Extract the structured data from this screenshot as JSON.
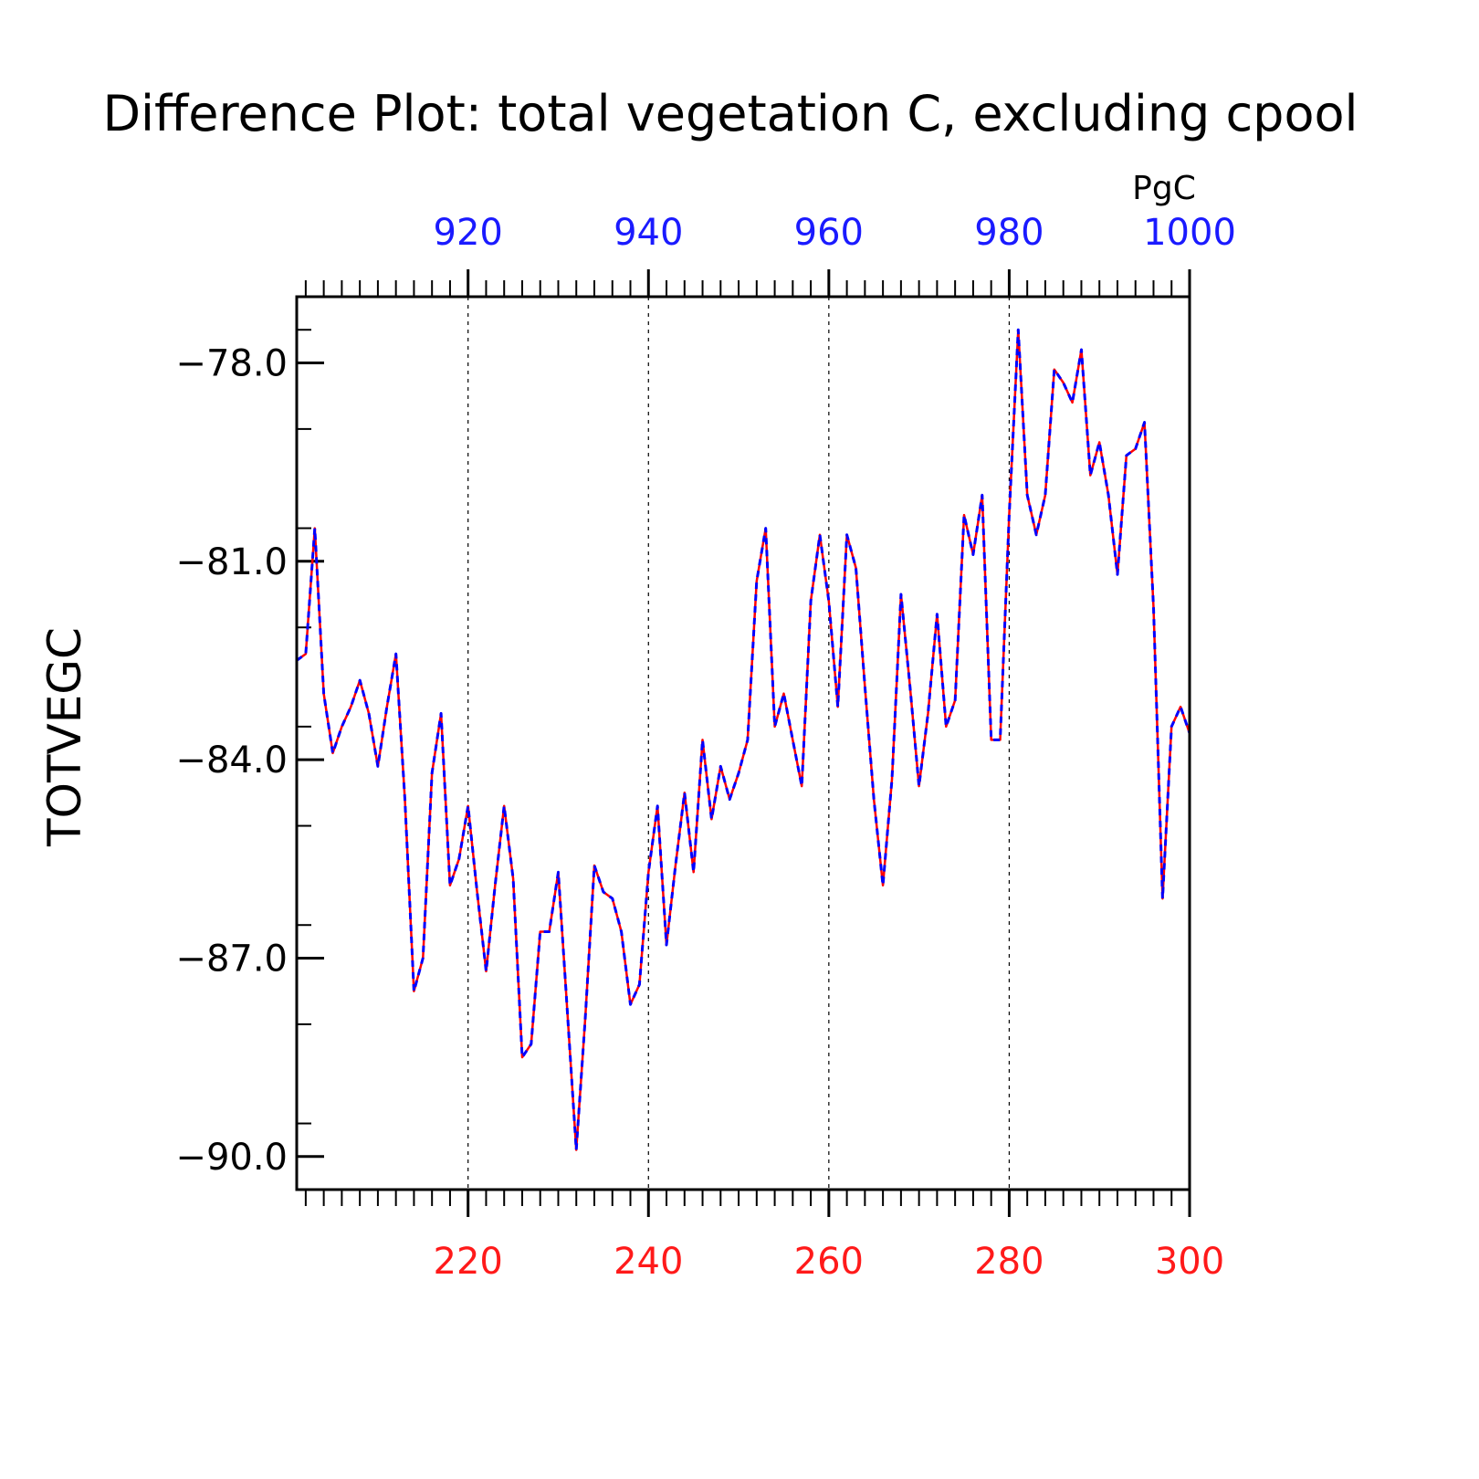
{
  "chart_data": {
    "type": "line",
    "title": "Difference Plot: total vegetation C, excluding cpool",
    "ylabel": "TOTVEGC",
    "unit_label": "PgC",
    "ylim": [
      -90.5,
      -77.0
    ],
    "yticks": [
      "−78.0",
      "−81.0",
      "−84.0",
      "−87.0",
      "−90.0"
    ],
    "ytick_values": [
      -78,
      -81,
      -84,
      -87,
      -90
    ],
    "x_bottom": {
      "range": [
        201,
        300
      ],
      "tick_values": [
        220,
        240,
        260,
        280,
        300
      ],
      "tick_labels": [
        "220",
        "240",
        "260",
        "280",
        "300"
      ],
      "color": "#ff0000"
    },
    "x_top": {
      "range": [
        901,
        1000
      ],
      "tick_values": [
        920,
        940,
        960,
        980,
        1000
      ],
      "tick_labels": [
        "920",
        "940",
        "960",
        "980",
        "1000"
      ],
      "color": "#0000ff"
    },
    "grid": "dotted vertical lines at major x ticks",
    "series": [
      {
        "color": "#ff0000",
        "style": "solid",
        "x": [
          201,
          202,
          203,
          204,
          205,
          206,
          207,
          208,
          209,
          210,
          211,
          212,
          213,
          214,
          215,
          216,
          217,
          218,
          219,
          220,
          221,
          222,
          223,
          224,
          225,
          226,
          227,
          228,
          229,
          230,
          231,
          232,
          233,
          234,
          235,
          236,
          237,
          238,
          239,
          240,
          241,
          242,
          243,
          244,
          245,
          246,
          247,
          248,
          249,
          250,
          251,
          252,
          253,
          254,
          255,
          256,
          257,
          258,
          259,
          260,
          261,
          262,
          263,
          264,
          265,
          266,
          267,
          268,
          269,
          270,
          271,
          272,
          273,
          274,
          275,
          276,
          277,
          278,
          279,
          280,
          281,
          282,
          283,
          284,
          285,
          286,
          287,
          288,
          289,
          290,
          291,
          292,
          293,
          294,
          295,
          296,
          297,
          298,
          299,
          300
        ],
        "values": [
          -82.5,
          -82.4,
          -80.5,
          -83.0,
          -83.9,
          -83.5,
          -83.2,
          -82.8,
          -83.3,
          -84.1,
          -83.2,
          -82.4,
          -84.6,
          -87.5,
          -87.0,
          -84.2,
          -83.3,
          -85.9,
          -85.5,
          -84.7,
          -86.0,
          -87.2,
          -85.9,
          -84.7,
          -85.8,
          -88.5,
          -88.3,
          -86.6,
          -86.6,
          -85.7,
          -87.8,
          -89.9,
          -87.9,
          -85.6,
          -86.0,
          -86.1,
          -86.6,
          -87.7,
          -87.4,
          -85.7,
          -84.7,
          -86.8,
          -85.6,
          -84.5,
          -85.7,
          -83.7,
          -84.9,
          -84.1,
          -84.6,
          -84.2,
          -83.7,
          -81.3,
          -80.5,
          -83.5,
          -83.0,
          -83.7,
          -84.4,
          -81.6,
          -80.6,
          -81.6,
          -83.2,
          -80.6,
          -81.1,
          -82.9,
          -84.6,
          -85.9,
          -84.3,
          -81.5,
          -82.9,
          -84.4,
          -83.3,
          -81.8,
          -83.5,
          -83.1,
          -80.3,
          -80.9,
          -80.0,
          -83.7,
          -83.7,
          -80.3,
          -77.5,
          -80.0,
          -80.6,
          -80.0,
          -78.1,
          -78.3,
          -78.6,
          -77.8,
          -79.7,
          -79.2,
          -80.0,
          -81.2,
          -79.4,
          -79.3,
          -78.9,
          -81.7,
          -86.1,
          -83.5,
          -83.2,
          -83.6
        ]
      },
      {
        "color": "#0000ff",
        "style": "dashed",
        "x": [
          201,
          202,
          203,
          204,
          205,
          206,
          207,
          208,
          209,
          210,
          211,
          212,
          213,
          214,
          215,
          216,
          217,
          218,
          219,
          220,
          221,
          222,
          223,
          224,
          225,
          226,
          227,
          228,
          229,
          230,
          231,
          232,
          233,
          234,
          235,
          236,
          237,
          238,
          239,
          240,
          241,
          242,
          243,
          244,
          245,
          246,
          247,
          248,
          249,
          250,
          251,
          252,
          253,
          254,
          255,
          256,
          257,
          258,
          259,
          260,
          261,
          262,
          263,
          264,
          265,
          266,
          267,
          268,
          269,
          270,
          271,
          272,
          273,
          274,
          275,
          276,
          277,
          278,
          279,
          280,
          281,
          282,
          283,
          284,
          285,
          286,
          287,
          288,
          289,
          290,
          291,
          292,
          293,
          294,
          295,
          296,
          297,
          298,
          299,
          300
        ],
        "values": [
          -82.5,
          -82.4,
          -80.5,
          -83.0,
          -83.9,
          -83.5,
          -83.2,
          -82.8,
          -83.3,
          -84.1,
          -83.2,
          -82.4,
          -84.6,
          -87.5,
          -87.0,
          -84.2,
          -83.3,
          -85.9,
          -85.5,
          -84.7,
          -86.0,
          -87.2,
          -85.9,
          -84.7,
          -85.8,
          -88.5,
          -88.3,
          -86.6,
          -86.6,
          -85.7,
          -87.8,
          -89.9,
          -87.9,
          -85.6,
          -86.0,
          -86.1,
          -86.6,
          -87.7,
          -87.4,
          -85.7,
          -84.7,
          -86.8,
          -85.6,
          -84.5,
          -85.7,
          -83.7,
          -84.9,
          -84.1,
          -84.6,
          -84.2,
          -83.7,
          -81.3,
          -80.5,
          -83.5,
          -83.0,
          -83.7,
          -84.4,
          -81.6,
          -80.6,
          -81.6,
          -83.2,
          -80.6,
          -81.1,
          -82.9,
          -84.6,
          -85.9,
          -84.3,
          -81.5,
          -82.9,
          -84.4,
          -83.3,
          -81.8,
          -83.5,
          -83.1,
          -80.3,
          -80.9,
          -80.0,
          -83.7,
          -83.7,
          -80.3,
          -77.5,
          -80.0,
          -80.6,
          -80.0,
          -78.1,
          -78.3,
          -78.6,
          -77.8,
          -79.7,
          -79.2,
          -80.0,
          -81.2,
          -79.4,
          -79.3,
          -78.9,
          -81.7,
          -86.1,
          -83.5,
          -83.2,
          -83.6
        ]
      }
    ]
  }
}
